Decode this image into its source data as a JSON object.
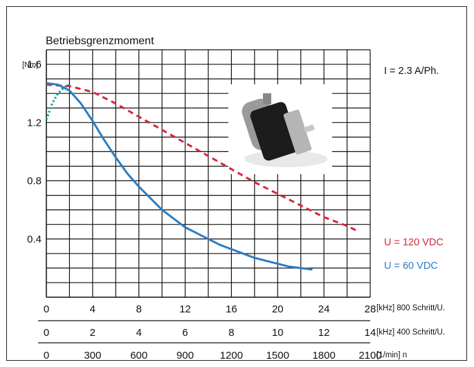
{
  "chart_data": {
    "type": "line",
    "title": "Betriebsgrenzmoment",
    "y_unit": "[Nm]",
    "y_ticks": [
      "0.4",
      "0.8",
      "1.2",
      "1.6"
    ],
    "ylim": [
      0,
      1.7
    ],
    "x_axes": [
      {
        "ticks": [
          "0",
          "4",
          "8",
          "12",
          "16",
          "20",
          "24",
          "28"
        ],
        "label": "[kHz] 800 Schritt/U."
      },
      {
        "ticks": [
          "0",
          "2",
          "4",
          "6",
          "8",
          "10",
          "12",
          "14"
        ],
        "label": "[kHz] 400 Schritt/U."
      },
      {
        "ticks": [
          "0",
          "300",
          "600",
          "900",
          "1200",
          "1500",
          "1800",
          "2100"
        ],
        "label": "[1/min] n"
      }
    ],
    "xlim": [
      0,
      28
    ],
    "annotation": "I = 2.3 A/Ph.",
    "grid": true,
    "series": [
      {
        "name": "U = 120 VDC",
        "color": "#d7263d",
        "dash": "dashed",
        "x": [
          0,
          2,
          4,
          6,
          8,
          10,
          12,
          14,
          16,
          18,
          20,
          22,
          24,
          26,
          27
        ],
        "y": [
          1.46,
          1.45,
          1.41,
          1.33,
          1.24,
          1.15,
          1.06,
          0.97,
          0.88,
          0.79,
          0.71,
          0.63,
          0.55,
          0.49,
          0.45
        ]
      },
      {
        "name": "U = 60 VDC",
        "color": "#2a7cc4",
        "dash": "solid",
        "x": [
          0,
          1,
          2,
          3,
          4,
          5,
          6,
          7,
          8,
          9,
          10,
          11,
          12,
          13,
          14,
          15,
          16,
          17,
          18,
          19,
          20,
          21,
          22,
          23
        ],
        "y": [
          1.47,
          1.46,
          1.42,
          1.33,
          1.21,
          1.08,
          0.96,
          0.85,
          0.76,
          0.68,
          0.6,
          0.54,
          0.48,
          0.44,
          0.4,
          0.36,
          0.33,
          0.3,
          0.27,
          0.25,
          0.23,
          0.21,
          0.2,
          0.19
        ]
      },
      {
        "name": "",
        "color": "#1aa39a",
        "dash": "dotted",
        "x": [
          0,
          0.5,
          1,
          1.5,
          2
        ],
        "y": [
          1.22,
          1.33,
          1.4,
          1.44,
          1.46
        ]
      }
    ]
  }
}
